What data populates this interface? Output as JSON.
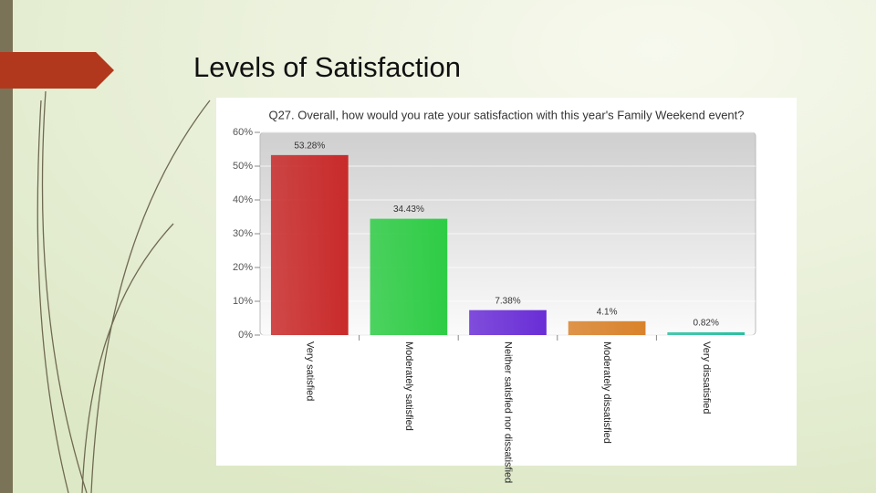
{
  "slide_title": "Levels of Satisfaction",
  "chart_data": {
    "type": "bar",
    "title": "Q27. Overall, how would you rate your satisfaction with this year's Family Weekend event?",
    "categories": [
      "Very satisfied",
      "Moderately satisfied",
      "Neither satisfied nor dissatisfied",
      "Moderately dissatisfied",
      "Very dissatisfied"
    ],
    "values": [
      53.28,
      34.43,
      7.38,
      4.1,
      0.82
    ],
    "value_labels": [
      "53.28%",
      "34.43%",
      "7.38%",
      "4.1%",
      "0.82%"
    ],
    "colors": [
      "#c92a2a",
      "#2ecc45",
      "#6a2ed6",
      "#d9822b",
      "#2bbf9f"
    ],
    "ylim": [
      0,
      60
    ],
    "yticks": [
      {
        "value": 0,
        "label": "0%"
      },
      {
        "value": 10,
        "label": "10%"
      },
      {
        "value": 20,
        "label": "20%"
      },
      {
        "value": 30,
        "label": "30%"
      },
      {
        "value": 40,
        "label": "40%"
      },
      {
        "value": 50,
        "label": "50%"
      },
      {
        "value": 60,
        "label": "60%"
      }
    ],
    "grid": true
  }
}
